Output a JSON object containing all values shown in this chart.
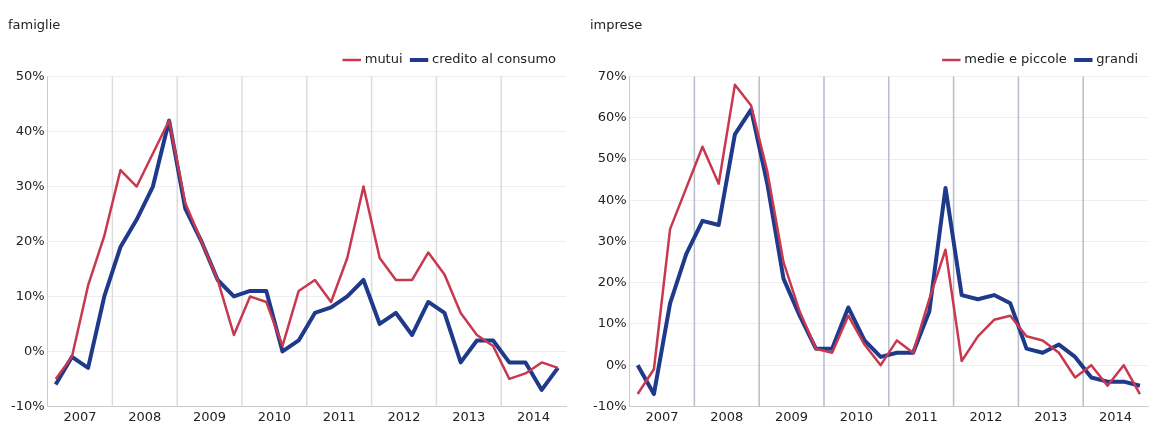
{
  "chart_data": [
    {
      "type": "line",
      "title": "famiglie",
      "x": [
        2007.125,
        2007.375,
        2007.625,
        2007.875,
        2008.125,
        2008.375,
        2008.625,
        2008.875,
        2009.125,
        2009.375,
        2009.625,
        2009.875,
        2010.125,
        2010.375,
        2010.625,
        2010.875,
        2011.125,
        2011.375,
        2011.625,
        2011.875,
        2012.125,
        2012.375,
        2012.625,
        2012.875,
        2013.125,
        2013.375,
        2013.625,
        2013.875,
        2014.125,
        2014.375,
        2014.625,
        2014.875
      ],
      "series": [
        {
          "name": "mutui",
          "color": "#c8384f",
          "values": [
            -5,
            -1,
            12,
            21,
            33,
            30,
            36,
            42,
            27,
            20,
            13,
            3,
            10,
            9,
            1,
            11,
            13,
            9,
            17,
            30,
            17,
            13,
            13,
            18,
            14,
            7,
            3,
            1,
            -5,
            -4,
            -2,
            -3
          ]
        },
        {
          "name": "credito al consumo",
          "color": "#1f3a8a",
          "values": [
            -6,
            -1,
            -3,
            10,
            19,
            24,
            30,
            42,
            26,
            20,
            13,
            10,
            11,
            11,
            0,
            2,
            7,
            8,
            10,
            13,
            5,
            7,
            3,
            9,
            7,
            -2,
            2,
            2,
            -2,
            -2,
            -7,
            -3
          ]
        }
      ],
      "xlim": [
        2007,
        2015
      ],
      "xticks": [
        {
          "value": 2007.5,
          "label": "2007"
        },
        {
          "value": 2008.5,
          "label": "2008"
        },
        {
          "value": 2009.5,
          "label": "2009"
        },
        {
          "value": 2010.5,
          "label": "2010"
        },
        {
          "value": 2011.5,
          "label": "2011"
        },
        {
          "value": 2012.5,
          "label": "2012"
        },
        {
          "value": 2013.5,
          "label": "2013"
        },
        {
          "value": 2014.5,
          "label": "2014"
        }
      ],
      "ylim": [
        -10,
        50
      ],
      "yticks": [
        {
          "value": -10,
          "label": "-10%"
        },
        {
          "value": 0,
          "label": "0%"
        },
        {
          "value": 10,
          "label": "10%"
        },
        {
          "value": 20,
          "label": "20%"
        },
        {
          "value": 30,
          "label": "30%"
        },
        {
          "value": 40,
          "label": "40%"
        },
        {
          "value": 50,
          "label": "50%"
        }
      ],
      "ref_lines": [
        {
          "axis": "x",
          "value": 2008,
          "color": "#dddddd"
        },
        {
          "axis": "x",
          "value": 2009,
          "color": "#dddddd"
        },
        {
          "axis": "x",
          "value": 2010,
          "color": "#dddddd"
        },
        {
          "axis": "x",
          "value": 2011,
          "color": "#dddddd"
        },
        {
          "axis": "x",
          "value": 2012,
          "color": "#dddddd"
        },
        {
          "axis": "x",
          "value": 2013,
          "color": "#dddddd"
        },
        {
          "axis": "x",
          "value": 2014,
          "color": "#dddddd"
        }
      ],
      "grid": "y",
      "legend": "top right",
      "marker": "none",
      "line_style": "solid"
    },
    {
      "type": "line",
      "title": "imprese",
      "x": [
        2007.125,
        2007.375,
        2007.625,
        2007.875,
        2008.125,
        2008.375,
        2008.625,
        2008.875,
        2009.125,
        2009.375,
        2009.625,
        2009.875,
        2010.125,
        2010.375,
        2010.625,
        2010.875,
        2011.125,
        2011.375,
        2011.625,
        2011.875,
        2012.125,
        2012.375,
        2012.625,
        2012.875,
        2013.125,
        2013.375,
        2013.625,
        2013.875,
        2014.125,
        2014.375,
        2014.625,
        2014.875
      ],
      "series": [
        {
          "name": "medie e piccole",
          "color": "#c8384f",
          "values": [
            -7,
            -1,
            33,
            43,
            53,
            44,
            68,
            63,
            47,
            25,
            13,
            4,
            3,
            12,
            5,
            0,
            6,
            3,
            16,
            28,
            1,
            7,
            11,
            12,
            7,
            6,
            3,
            -3,
            0,
            -5,
            0,
            -7
          ]
        },
        {
          "name": "grandi",
          "color": "#1f3a8a",
          "values": [
            0,
            -7,
            15,
            27,
            35,
            34,
            56,
            62,
            44,
            21,
            12,
            4,
            4,
            14,
            6,
            2,
            3,
            3,
            13,
            43,
            17,
            16,
            17,
            15,
            4,
            3,
            5,
            2,
            -3,
            -4,
            -4,
            -5
          ]
        }
      ],
      "xlim": [
        2007,
        2015
      ],
      "xticks": [
        {
          "value": 2007.5,
          "label": "2007"
        },
        {
          "value": 2008.5,
          "label": "2008"
        },
        {
          "value": 2009.5,
          "label": "2009"
        },
        {
          "value": 2010.5,
          "label": "2010"
        },
        {
          "value": 2011.5,
          "label": "2011"
        },
        {
          "value": 2012.5,
          "label": "2012"
        },
        {
          "value": 2013.5,
          "label": "2013"
        },
        {
          "value": 2014.5,
          "label": "2014"
        }
      ],
      "ylim": [
        -10,
        70
      ],
      "yticks": [
        {
          "value": -10,
          "label": "-10%"
        },
        {
          "value": 0,
          "label": "0%"
        },
        {
          "value": 10,
          "label": "10%"
        },
        {
          "value": 20,
          "label": "20%"
        },
        {
          "value": 30,
          "label": "30%"
        },
        {
          "value": 40,
          "label": "40%"
        },
        {
          "value": 50,
          "label": "50%"
        },
        {
          "value": 60,
          "label": "60%"
        },
        {
          "value": 70,
          "label": "70%"
        }
      ],
      "ref_lines": [
        {
          "axis": "x",
          "value": 2008,
          "color": "#b8bccc"
        },
        {
          "axis": "x",
          "value": 2009,
          "color": "#b8bccc"
        },
        {
          "axis": "x",
          "value": 2010,
          "color": "#b8bccc"
        },
        {
          "axis": "x",
          "value": 2011,
          "color": "#b8bccc"
        },
        {
          "axis": "x",
          "value": 2012,
          "color": "#b8bccc"
        },
        {
          "axis": "x",
          "value": 2013,
          "color": "#b8bccc"
        },
        {
          "axis": "x",
          "value": 2014,
          "color": "#b8bccc"
        }
      ],
      "grid": "y",
      "legend": "top right",
      "marker": "none",
      "line_style": "solid"
    }
  ]
}
